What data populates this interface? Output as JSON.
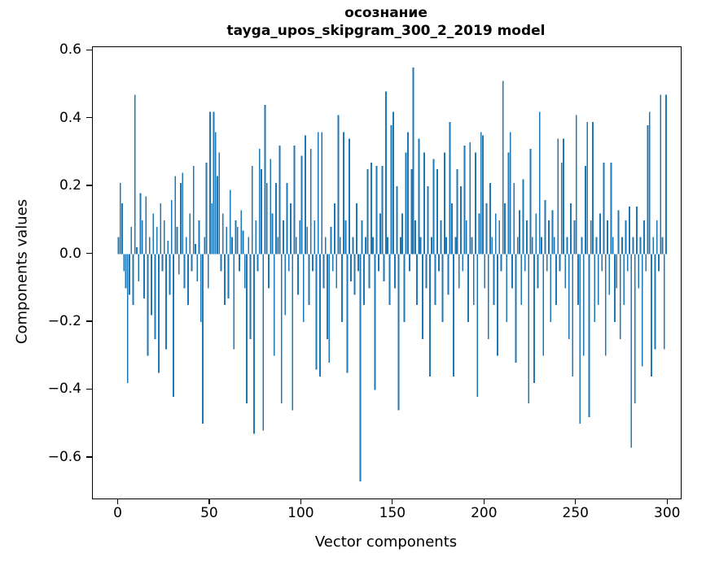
{
  "chart_data": {
    "type": "bar",
    "title": "осознание",
    "subtitle": "tayga_upos_skipgram_300_2_2019 model",
    "xlabel": "Vector components",
    "ylabel": "Components values",
    "bar_color": "#1f77b4",
    "xlim": [
      -14,
      307
    ],
    "ylim": [
      -0.72,
      0.61
    ],
    "bar_width_units": 0.8,
    "grid": false,
    "legend": "none",
    "xtick_values": [
      0,
      50,
      100,
      150,
      200,
      250,
      300
    ],
    "xtick_labels": [
      "0",
      "50",
      "100",
      "150",
      "200",
      "250",
      "300"
    ],
    "ytick_values": [
      0.6,
      0.4,
      0.2,
      0.0,
      -0.2,
      -0.4,
      -0.6
    ],
    "ytick_labels": [
      "0.6",
      "0.4",
      "0.2",
      "0.0",
      "−0.2",
      "−0.4",
      "−0.6"
    ],
    "x_is_index": true,
    "values": [
      0.05,
      0.21,
      0.15,
      -0.05,
      -0.1,
      -0.38,
      -0.12,
      0.08,
      -0.15,
      0.47,
      0.02,
      -0.08,
      0.18,
      0.1,
      -0.13,
      0.17,
      -0.3,
      0.05,
      -0.18,
      0.12,
      -0.25,
      0.08,
      -0.35,
      0.15,
      -0.05,
      0.1,
      -0.28,
      0.04,
      -0.12,
      0.16,
      -0.42,
      0.23,
      0.08,
      -0.06,
      0.21,
      0.24,
      -0.1,
      0.05,
      -0.15,
      0.12,
      -0.05,
      0.26,
      0.03,
      -0.08,
      0.1,
      -0.2,
      -0.5,
      0.05,
      0.27,
      -0.1,
      0.42,
      0.15,
      0.42,
      0.36,
      0.23,
      0.3,
      -0.05,
      0.12,
      -0.15,
      0.08,
      -0.13,
      0.19,
      0.05,
      -0.28,
      0.1,
      0.08,
      -0.05,
      0.13,
      0.07,
      -0.1,
      -0.44,
      0.05,
      -0.25,
      0.26,
      -0.53,
      0.1,
      -0.05,
      0.31,
      0.25,
      -0.52,
      0.44,
      0.21,
      -0.1,
      0.28,
      0.12,
      -0.3,
      0.21,
      0.05,
      0.32,
      -0.44,
      0.1,
      -0.18,
      0.21,
      -0.05,
      0.15,
      -0.46,
      0.32,
      0.05,
      -0.12,
      0.1,
      0.29,
      -0.2,
      0.35,
      0.08,
      -0.15,
      0.31,
      -0.05,
      0.1,
      -0.34,
      0.36,
      -0.36,
      0.36,
      -0.1,
      0.05,
      -0.25,
      -0.32,
      0.08,
      -0.05,
      0.15,
      -0.1,
      0.41,
      0.05,
      -0.2,
      0.36,
      0.1,
      -0.35,
      0.34,
      -0.08,
      0.05,
      -0.12,
      0.15,
      -0.05,
      -0.67,
      0.1,
      -0.15,
      0.05,
      0.25,
      -0.1,
      0.27,
      0.05,
      -0.4,
      0.26,
      -0.05,
      0.12,
      0.26,
      -0.08,
      0.48,
      0.05,
      -0.15,
      0.38,
      0.42,
      -0.1,
      0.2,
      -0.46,
      0.05,
      0.12,
      -0.2,
      0.3,
      0.36,
      -0.05,
      0.25,
      0.55,
      0.1,
      -0.15,
      0.34,
      0.05,
      -0.25,
      0.3,
      -0.1,
      0.2,
      -0.36,
      0.05,
      0.28,
      -0.15,
      0.25,
      -0.05,
      0.1,
      -0.2,
      0.3,
      0.05,
      -0.12,
      0.39,
      0.15,
      -0.36,
      0.05,
      0.25,
      -0.1,
      0.2,
      -0.05,
      0.32,
      0.1,
      -0.2,
      0.33,
      0.05,
      -0.15,
      0.3,
      -0.42,
      0.12,
      0.36,
      0.35,
      -0.1,
      0.15,
      -0.25,
      0.21,
      0.05,
      -0.15,
      0.12,
      -0.3,
      0.1,
      -0.05,
      0.51,
      0.15,
      -0.2,
      0.3,
      0.36,
      -0.1,
      0.21,
      -0.32,
      0.05,
      0.13,
      -0.15,
      0.22,
      -0.05,
      0.1,
      -0.44,
      0.31,
      0.05,
      -0.38,
      0.12,
      -0.1,
      0.42,
      0.05,
      -0.3,
      0.16,
      -0.05,
      0.1,
      -0.2,
      0.13,
      0.05,
      -0.15,
      0.34,
      -0.05,
      0.27,
      0.34,
      -0.1,
      0.05,
      -0.25,
      0.15,
      -0.36,
      0.1,
      0.41,
      -0.15,
      -0.5,
      0.05,
      -0.3,
      0.26,
      0.39,
      -0.48,
      0.1,
      0.39,
      -0.2,
      0.05,
      -0.15,
      0.12,
      -0.05,
      0.27,
      -0.3,
      0.1,
      -0.12,
      0.27,
      0.05,
      -0.2,
      -0.1,
      0.13,
      -0.25,
      0.05,
      -0.15,
      0.1,
      -0.05,
      0.14,
      -0.57,
      0.05,
      -0.44,
      0.14,
      -0.1,
      0.05,
      -0.33,
      0.1,
      -0.05,
      0.38,
      0.42,
      -0.36,
      0.05,
      -0.28,
      0.1,
      -0.05,
      0.47,
      0.05,
      -0.28,
      0.47
    ]
  }
}
